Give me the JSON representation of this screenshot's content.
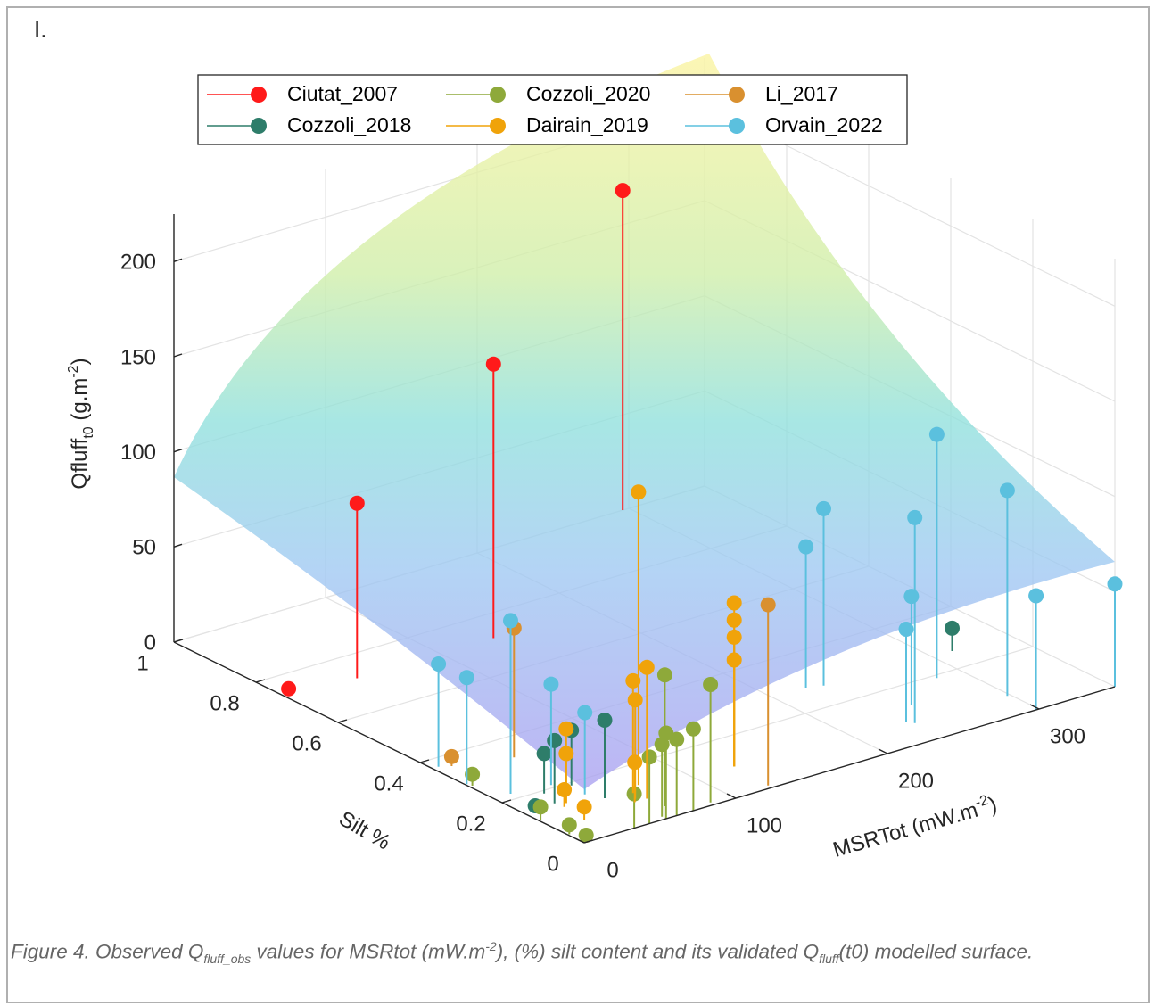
{
  "panel_label": "I.",
  "caption": [
    {
      "text": "Figure 4. Observed Q"
    },
    {
      "text": "fluff_obs",
      "style": "sub"
    },
    {
      "text": " values for MSRtot (mW.m"
    },
    {
      "text": "-2",
      "style": "sup"
    },
    {
      "text": "), (%) silt content and its validated Q"
    },
    {
      "text": "fluff",
      "style": "sub"
    },
    {
      "text": "(t0) modelled surface."
    }
  ],
  "chart_data": {
    "type": "stem3",
    "xlabel": {
      "text": "MSRTot (mW.m",
      "sup": "-2",
      "end": ")"
    },
    "ylabel": "Silt %",
    "zlabel": {
      "text": "Qfluff",
      "sub": "t0",
      "rest": " (g.m",
      "sup": "-2",
      "end": ")"
    },
    "xlim": [
      0,
      350
    ],
    "ylim": [
      0,
      1
    ],
    "zlim": [
      0,
      225
    ],
    "xticks": [
      0,
      100,
      200,
      300
    ],
    "yticks": [
      0,
      0.2,
      0.4,
      0.6,
      0.8,
      1
    ],
    "zticks": [
      0,
      50,
      100,
      150,
      200
    ],
    "grid": true,
    "legend": "top",
    "series": [
      {
        "name": "Ciutat_2007",
        "color": "#ff1a1a",
        "x": [
          45,
          135,
          296,
          8
        ],
        "y": [
          0.72,
          0.72,
          1.0,
          0.75
        ],
        "z": [
          92,
          144,
          168,
          0
        ]
      },
      {
        "name": "Cozzoli_2018",
        "color": "#2e7d6a",
        "x": [
          313,
          11,
          21,
          25,
          46,
          43
        ],
        "y": [
          0.26,
          0.16,
          0.15,
          0.19,
          0.12,
          0.19
        ],
        "z": [
          12,
          0,
          33,
          21,
          41,
          29
        ]
      },
      {
        "name": "Cozzoli_2020",
        "color": "#8ea93a",
        "x": [
          86,
          72,
          61,
          64,
          54,
          43,
          33,
          1,
          4,
          1,
          2,
          54
        ],
        "y": [
          0.01,
          0,
          0,
          0.04,
          0,
          0,
          0,
          0.04,
          0.01,
          0.11,
          0.28,
          0.01
        ],
        "z": [
          62,
          43,
          40,
          69,
          45,
          35,
          18,
          5,
          2,
          7,
          6,
          38
        ]
      },
      {
        "name": "Dairain_2019",
        "color": "#f0a30a",
        "x": [
          71,
          126,
          126,
          126,
          126,
          62,
          63,
          58,
          55,
          26,
          26,
          22,
          19
        ],
        "y": [
          0.13,
          0.1,
          0.1,
          0.1,
          0.1,
          0.11,
          0.08,
          0.09,
          0.08,
          0.14,
          0.14,
          0.13,
          0.07
        ],
        "z": [
          154,
          86,
          77,
          68,
          56,
          59,
          69,
          52,
          21,
          39,
          26,
          9,
          7
        ]
      },
      {
        "name": "Li_2017",
        "color": "#d9902f",
        "x": [
          124,
          43,
          10
        ],
        "y": [
          0.01,
          0.33,
          0.36
        ],
        "z": [
          95,
          68,
          5
        ]
      },
      {
        "name": "Orvain_2022",
        "color": "#5bc0de",
        "x": [
          350,
          298,
          298,
          284,
          231,
          222,
          237,
          234,
          251,
          11,
          4,
          1,
          35,
          41
        ],
        "y": [
          0,
          0,
          0.07,
          0.19,
          0.27,
          0.28,
          0.07,
          0.08,
          0.13,
          0.22,
          0.37,
          0.29,
          0.21,
          0.15
        ],
        "z": [
          54,
          60,
          108,
          128,
          93,
          74,
          108,
          49,
          57,
          91,
          54,
          56,
          53,
          43
        ]
      }
    ]
  }
}
